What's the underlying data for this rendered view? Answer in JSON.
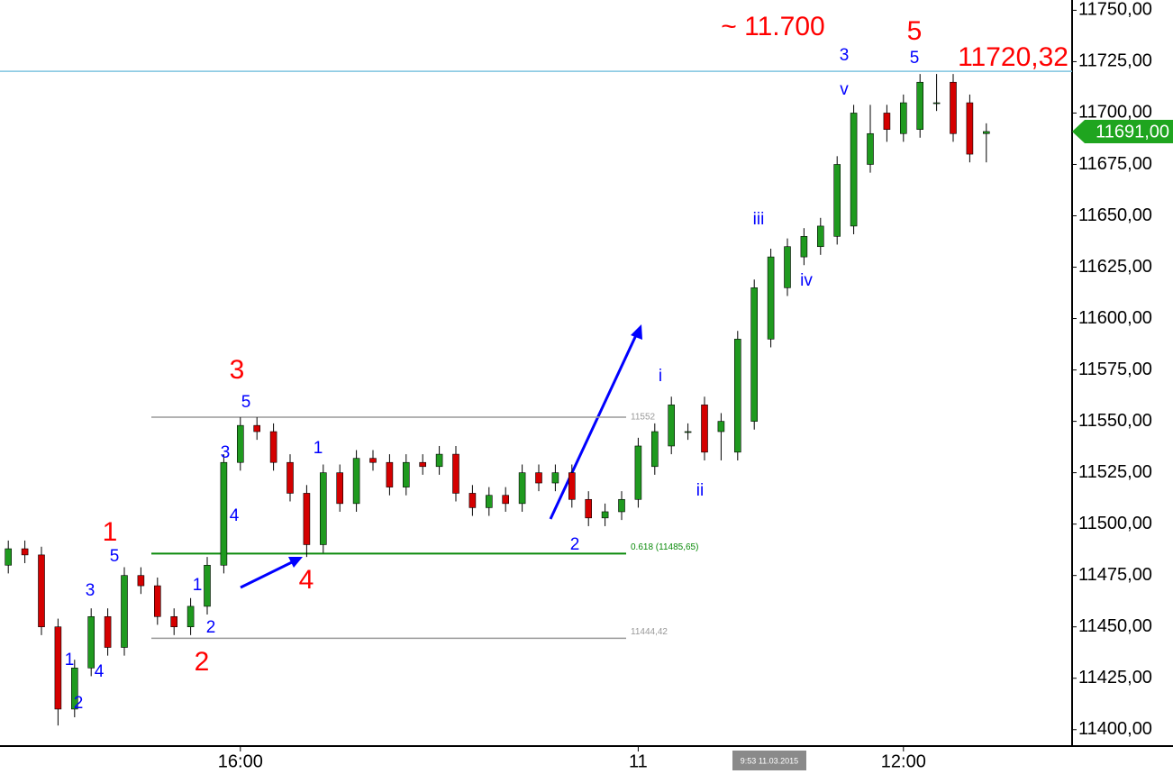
{
  "chart_data": {
    "type": "candlestick",
    "categories": [
      null,
      null,
      null,
      null,
      null,
      null,
      null,
      null,
      null,
      null,
      null,
      null,
      null,
      null,
      "16:00",
      null,
      null,
      null,
      null,
      null,
      null,
      null,
      null,
      null,
      null,
      null,
      null,
      null,
      null,
      null,
      null,
      null,
      null,
      null,
      null,
      null,
      null,
      null,
      "11",
      null,
      null,
      null,
      null,
      null,
      null,
      null,
      null,
      null,
      null,
      null,
      null,
      null,
      null,
      null,
      "12:00",
      null,
      null,
      null,
      null,
      null
    ],
    "open": [
      11480,
      11488,
      11485,
      11450,
      11410,
      11430,
      11455,
      11440,
      11475,
      11470,
      11455,
      11450,
      11460,
      11480,
      11530,
      11548,
      11545,
      11530,
      11515,
      11490,
      11525,
      11510,
      11532,
      11530,
      11518,
      11530,
      11528,
      11534,
      11515,
      11508,
      11514,
      11510,
      11525,
      11520,
      11525,
      11512,
      11503,
      11506,
      11512,
      11528,
      11538,
      11545,
      11558,
      11545,
      11535,
      11550,
      11590,
      11615,
      11630,
      11635,
      11640,
      11645,
      11675,
      11700,
      11690,
      11692,
      11705,
      11715,
      11705,
      11690
    ],
    "high": [
      11492,
      11492,
      11489,
      11454,
      11434,
      11459,
      11459,
      11479,
      11479,
      11474,
      11459,
      11464,
      11484,
      11534,
      11552,
      11552,
      11549,
      11534,
      11519,
      11529,
      11529,
      11536,
      11536,
      11534,
      11534,
      11534,
      11538,
      11538,
      11519,
      11518,
      11518,
      11529,
      11529,
      11529,
      11529,
      11516,
      11510,
      11516,
      11542,
      11549,
      11562,
      11549,
      11562,
      11554,
      11594,
      11619,
      11634,
      11639,
      11644,
      11649,
      11679,
      11704,
      11704,
      11704,
      11709,
      11719,
      11719,
      11719,
      11709,
      11695
    ],
    "low": [
      11476,
      11481,
      11446,
      11402,
      11406,
      11426,
      11436,
      11436,
      11466,
      11451,
      11446,
      11446,
      11456,
      11476,
      11526,
      11541,
      11526,
      11511,
      11484,
      11486,
      11506,
      11506,
      11526,
      11514,
      11514,
      11524,
      11524,
      11511,
      11504,
      11504,
      11506,
      11506,
      11516,
      11516,
      11508,
      11499,
      11499,
      11502,
      11508,
      11524,
      11534,
      11541,
      11531,
      11531,
      11531,
      11546,
      11586,
      11611,
      11626,
      11631,
      11636,
      11641,
      11671,
      11686,
      11686,
      11688,
      11701,
      11686,
      11676,
      11676
    ],
    "close": [
      11488,
      11485,
      11450,
      11410,
      11430,
      11455,
      11440,
      11475,
      11470,
      11455,
      11450,
      11460,
      11480,
      11530,
      11548,
      11545,
      11530,
      11515,
      11490,
      11525,
      11510,
      11532,
      11530,
      11518,
      11530,
      11528,
      11534,
      11515,
      11508,
      11514,
      11510,
      11525,
      11520,
      11525,
      11512,
      11503,
      11506,
      11512,
      11538,
      11545,
      11558,
      11545,
      11535,
      11550,
      11590,
      11615,
      11630,
      11635,
      11640,
      11645,
      11675,
      11700,
      11690,
      11692,
      11705,
      11715,
      11705,
      11690,
      11680,
      11691
    ],
    "up_color": "#1f9a1f",
    "down_color": "#d40000",
    "ylim": [
      11392,
      11755
    ],
    "yticks": [
      {
        "value": 11400,
        "label": "11400,00"
      },
      {
        "value": 11425,
        "label": "11425,00"
      },
      {
        "value": 11450,
        "label": "11450,00"
      },
      {
        "value": 11475,
        "label": "11475,00"
      },
      {
        "value": 11500,
        "label": "11500,00"
      },
      {
        "value": 11525,
        "label": "11525,00"
      },
      {
        "value": 11550,
        "label": "11550,00"
      },
      {
        "value": 11575,
        "label": "11575,00"
      },
      {
        "value": 11600,
        "label": "11600,00"
      },
      {
        "value": 11625,
        "label": "11625,00"
      },
      {
        "value": 11650,
        "label": "11650,00"
      },
      {
        "value": 11675,
        "label": "11675,00"
      },
      {
        "value": 11700,
        "label": "11700,00"
      },
      {
        "value": 11725,
        "label": "11725,00"
      },
      {
        "value": 11750,
        "label": "11750,00"
      }
    ],
    "reference_lines": [
      {
        "value": 11552,
        "label": "11552",
        "color": "#999999",
        "label_color": "#999999"
      },
      {
        "value": 11485.65,
        "label": "0.618 (11485,65)",
        "color": "#0a8a0a",
        "label_color": "#0a8a0a"
      },
      {
        "value": 11444.42,
        "label": "11444,42",
        "color": "#999999",
        "label_color": "#999999"
      },
      {
        "value": 11720.32,
        "label": "11720,32",
        "color": "#7fc4e0",
        "label_color": "#ff0000"
      }
    ],
    "last_price": {
      "value": 11691,
      "label": "11691,00",
      "color": "#1fa51f"
    },
    "cursor_time": "9:53 11.03.2015",
    "annotations": [
      {
        "text": "~ 11.700",
        "color": "#ff0000"
      },
      {
        "text": "5",
        "color": "#ff0000"
      },
      {
        "text": "3",
        "color": "#0000ff"
      },
      {
        "text": "5",
        "color": "#0000ff"
      },
      {
        "text": "v",
        "color": "#0000ff"
      },
      {
        "text": "iii",
        "color": "#0000ff"
      },
      {
        "text": "iv",
        "color": "#0000ff"
      },
      {
        "text": "i",
        "color": "#0000ff"
      },
      {
        "text": "ii",
        "color": "#0000ff"
      },
      {
        "text": "3",
        "color": "#ff0000"
      },
      {
        "text": "5",
        "color": "#0000ff"
      },
      {
        "text": "1",
        "color": "#0000ff"
      },
      {
        "text": "3",
        "color": "#0000ff"
      },
      {
        "text": "4",
        "color": "#0000ff"
      },
      {
        "text": "1",
        "color": "#ff0000"
      },
      {
        "text": "5",
        "color": "#0000ff"
      },
      {
        "text": "2",
        "color": "#0000ff"
      },
      {
        "text": "4",
        "color": "#ff0000"
      },
      {
        "text": "1",
        "color": "#0000ff"
      },
      {
        "text": "3",
        "color": "#0000ff"
      },
      {
        "text": "2",
        "color": "#0000ff"
      },
      {
        "text": "2",
        "color": "#ff0000"
      },
      {
        "text": "1",
        "color": "#0000ff"
      },
      {
        "text": "4",
        "color": "#0000ff"
      },
      {
        "text": "2",
        "color": "#0000ff"
      }
    ]
  }
}
